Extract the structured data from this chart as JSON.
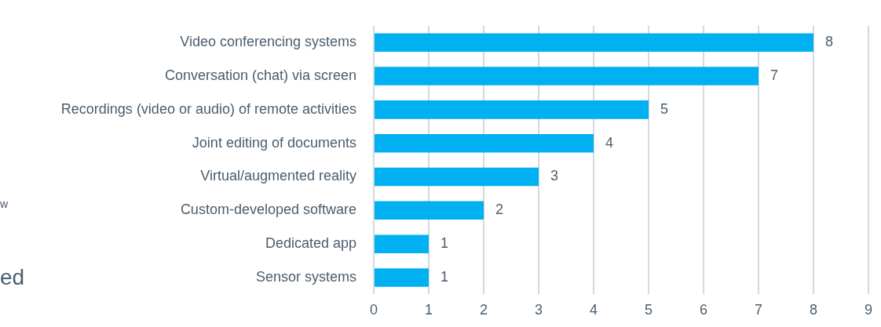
{
  "chart_data": {
    "type": "bar",
    "orientation": "horizontal",
    "categories": [
      "Video conferencing systems",
      "Conversation (chat) via screen",
      "Recordings (video or audio) of remote activities",
      "Joint editing of documents",
      "Virtual/augmented reality",
      "Custom-developed software",
      "Dedicated app",
      "Sensor systems"
    ],
    "values": [
      8,
      7,
      5,
      4,
      3,
      2,
      1,
      1
    ],
    "color": "#00b0f0",
    "xlim": [
      0,
      9
    ],
    "xticks": [
      0,
      1,
      2,
      3,
      4,
      5,
      6,
      7,
      8,
      9
    ],
    "grid": "x",
    "data_labels": true,
    "legend": false,
    "annotations": [
      "w",
      "ed"
    ]
  }
}
